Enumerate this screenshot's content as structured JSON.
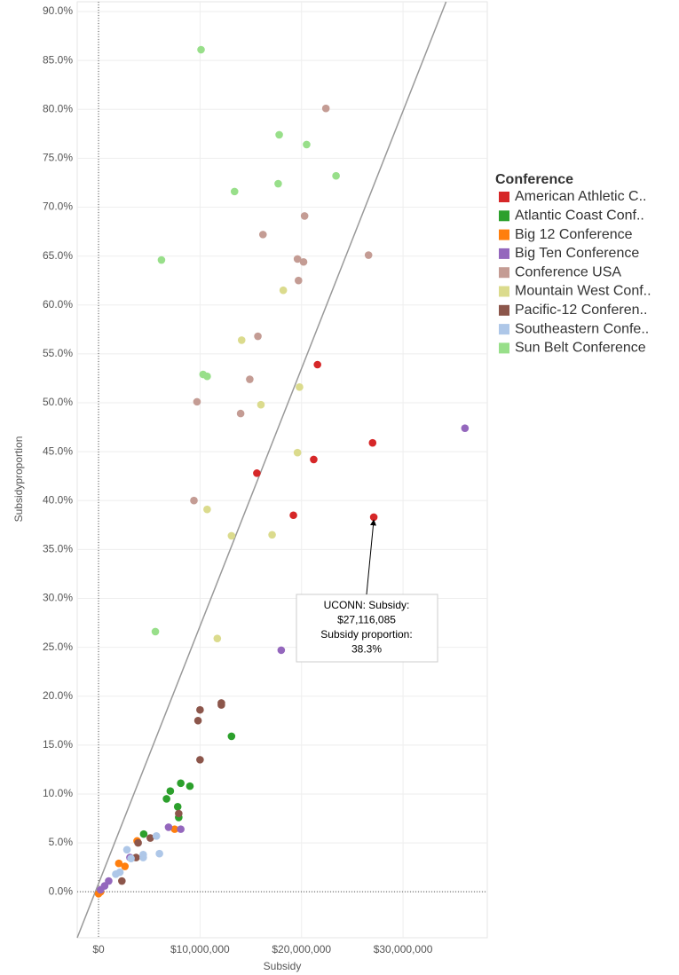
{
  "chart_data": {
    "type": "scatter",
    "x_label": "Subsidy",
    "y_label": "Subsidyproportion",
    "legend_title": "Conference",
    "legend_position": "right",
    "grid": true,
    "xlim": [
      -2100000,
      38300000
    ],
    "ylim": [
      -4.7,
      91
    ],
    "xticks": [
      {
        "value": 0,
        "label": "$0"
      },
      {
        "value": 10000000,
        "label": "$10,000,000"
      },
      {
        "value": 20000000,
        "label": "$20,000,000"
      },
      {
        "value": 30000000,
        "label": "$30,000,000"
      }
    ],
    "yticks": [
      {
        "value": 0,
        "label": "0.0%"
      },
      {
        "value": 5,
        "label": "5.0%"
      },
      {
        "value": 10,
        "label": "10.0%"
      },
      {
        "value": 15,
        "label": "15.0%"
      },
      {
        "value": 20,
        "label": "20.0%"
      },
      {
        "value": 25,
        "label": "25.0%"
      },
      {
        "value": 30,
        "label": "30.0%"
      },
      {
        "value": 35,
        "label": "35.0%"
      },
      {
        "value": 40,
        "label": "40.0%"
      },
      {
        "value": 45,
        "label": "45.0%"
      },
      {
        "value": 50,
        "label": "50.0%"
      },
      {
        "value": 55,
        "label": "55.0%"
      },
      {
        "value": 60,
        "label": "60.0%"
      },
      {
        "value": 65,
        "label": "65.0%"
      },
      {
        "value": 70,
        "label": "70.0%"
      },
      {
        "value": 75,
        "label": "75.0%"
      },
      {
        "value": 80,
        "label": "80.0%"
      },
      {
        "value": 85,
        "label": "85.0%"
      },
      {
        "value": 90,
        "label": "90.0%"
      }
    ],
    "reference_line": {
      "x": [
        -2100000,
        34240000
      ],
      "y": [
        -4.7,
        91
      ]
    },
    "series": [
      {
        "name": "American Athletic C..",
        "color": "#d62728",
        "x": [
          21570000,
          27000000,
          21200000,
          15600000,
          19200000,
          27116085
        ],
        "values": [
          53.9,
          45.9,
          44.2,
          42.8,
          38.5,
          38.3
        ]
      },
      {
        "name": "Atlantic Coast Conf..",
        "color": "#2ca02c",
        "x": [
          13100000,
          7070000,
          6700000,
          8100000,
          9000000,
          7800000,
          7900000,
          4450000
        ],
        "values": [
          15.9,
          10.3,
          9.5,
          11.1,
          10.8,
          8.7,
          7.6,
          5.9
        ]
      },
      {
        "name": "Big 12 Conference",
        "color": "#ff7f0e",
        "x": [
          2000000,
          2600000,
          3800000,
          7500000,
          200000,
          0
        ],
        "values": [
          2.9,
          2.6,
          5.2,
          6.4,
          0.0,
          -0.2
        ]
      },
      {
        "name": "Big Ten Conference",
        "color": "#9467bd",
        "x": [
          36100000,
          18000000,
          6900000,
          8100000,
          3100000,
          1000000,
          600000,
          200000
        ],
        "values": [
          47.4,
          24.7,
          6.6,
          6.4,
          3.5,
          1.1,
          0.6,
          0.2
        ]
      },
      {
        "name": "Conference USA",
        "color": "#c49c94",
        "x": [
          22400000,
          16200000,
          20300000,
          19600000,
          20200000,
          26600000,
          19700000,
          15700000,
          14900000,
          9700000,
          14000000,
          9400000
        ],
        "values": [
          80.1,
          67.2,
          69.1,
          64.7,
          64.4,
          65.1,
          62.5,
          56.8,
          52.4,
          50.1,
          48.9,
          40.0
        ]
      },
      {
        "name": "Mountain West Conf..",
        "color": "#dbdb8d",
        "x": [
          18200000,
          14100000,
          19800000,
          16000000,
          19600000,
          10700000,
          13100000,
          17100000,
          11700000
        ],
        "values": [
          61.5,
          56.4,
          51.6,
          49.8,
          44.9,
          39.1,
          36.4,
          36.5,
          25.9
        ]
      },
      {
        "name": "Pacific-12 Conferen..",
        "color": "#8c564b",
        "x": [
          12100000,
          12100000,
          10000000,
          9800000,
          10000000,
          7900000,
          5100000,
          3700000,
          2300000,
          3900000
        ],
        "values": [
          19.3,
          19.1,
          18.6,
          17.5,
          13.5,
          8.0,
          5.5,
          3.5,
          1.1,
          5.0
        ]
      },
      {
        "name": "Southeastern Confe..",
        "color": "#aec7e8",
        "x": [
          5700000,
          6000000,
          4400000,
          4400000,
          2800000,
          2100000,
          1700000,
          3200000
        ],
        "values": [
          5.7,
          3.9,
          3.8,
          3.5,
          4.3,
          2.0,
          1.8,
          3.4
        ]
      },
      {
        "name": "Sun Belt Conference",
        "color": "#98df8a",
        "x": [
          10100000,
          17800000,
          20500000,
          23400000,
          13400000,
          17700000,
          6200000,
          10300000,
          10700000,
          5600000
        ],
        "values": [
          86.1,
          77.4,
          76.4,
          73.2,
          71.6,
          72.4,
          64.6,
          52.9,
          52.7,
          26.6
        ]
      }
    ],
    "annotation": {
      "lines": [
        "UCONN: Subsidy:",
        "$27,116,085",
        "Subsidy proportion:",
        "38.3%"
      ],
      "x": 27116085,
      "y": 38.3
    }
  }
}
